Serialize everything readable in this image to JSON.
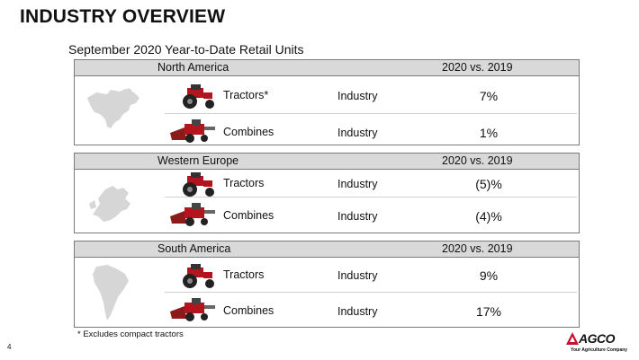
{
  "slide": {
    "title": "INDUSTRY OVERVIEW",
    "subtitle": "September 2020 Year-to-Date Retail Units",
    "footnote": "* Excludes compact tractors",
    "page_number": "4"
  },
  "regions": [
    {
      "name": "North America",
      "comparison": "2020 vs. 2019",
      "rows": [
        {
          "vehicle": "Tractors*",
          "segment": "Industry",
          "value": "7%",
          "icon": "tractor-icon"
        },
        {
          "vehicle": "Combines",
          "segment": "Industry",
          "value": "1%",
          "icon": "combine-icon"
        }
      ]
    },
    {
      "name": "Western Europe",
      "comparison": "2020 vs. 2019",
      "rows": [
        {
          "vehicle": "Tractors",
          "segment": "Industry",
          "value": "(5)%",
          "icon": "tractor-icon"
        },
        {
          "vehicle": "Combines",
          "segment": "Industry",
          "value": "(4)%",
          "icon": "combine-icon"
        }
      ]
    },
    {
      "name": "South America",
      "comparison": "2020 vs. 2019",
      "rows": [
        {
          "vehicle": "Tractors",
          "segment": "Industry",
          "value": "9%",
          "icon": "tractor-icon"
        },
        {
          "vehicle": "Combines",
          "segment": "Industry",
          "value": "17%",
          "icon": "combine-icon"
        }
      ]
    }
  ],
  "logo": {
    "brand": "AGCO",
    "tagline": "Your Agriculture Company",
    "color": "#c8102e"
  }
}
